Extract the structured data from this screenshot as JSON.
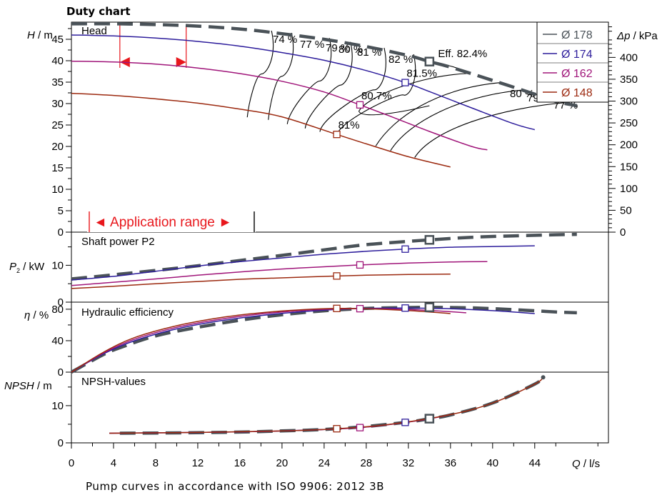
{
  "chart_data": {
    "type": "line",
    "title": "Duty chart",
    "footer": "Pump curves in accordance with ISO 9906: 2012 3B",
    "colors": {
      "d178": "#4a5258",
      "d174": "#2e1e9c",
      "d162": "#a0167a",
      "d148": "#9c2a10",
      "iso": "#000000",
      "app": "#e8171c"
    },
    "legend": [
      {
        "label": "Ø 178",
        "color": "#4a5258"
      },
      {
        "label": "Ø 174",
        "color": "#2e1e9c"
      },
      {
        "label": "Ø 162",
        "color": "#a0167a"
      },
      {
        "label": "Ø 148",
        "color": "#9c2a10"
      }
    ],
    "x_axis": {
      "label_var": "Q",
      "label_unit": " / l/s",
      "range": [
        0,
        51
      ],
      "ticks": [
        "0",
        "4",
        "8",
        "12",
        "16",
        "20",
        "24",
        "28",
        "32",
        "36",
        "40",
        "44"
      ]
    },
    "application_range": {
      "label": "◄ Application range ►",
      "range": [
        4.6,
        10.9
      ]
    },
    "panels": {
      "head": {
        "title": "Head",
        "y_label_var": "H",
        "y_label_unit": " / m",
        "ylim": [
          0,
          49
        ],
        "yticks": [
          "0",
          "5",
          "10",
          "15",
          "20",
          "25",
          "30",
          "35",
          "40",
          "45"
        ],
        "right_axis": {
          "label_var": "Δp",
          "label_unit": " / kPa",
          "ticks": [
            "0",
            "50",
            "100",
            "150",
            "200",
            "250",
            "300",
            "350",
            "400"
          ]
        },
        "series": [
          {
            "name": "Ø 178",
            "points": [
              [
                0,
                48.6
              ],
              [
                4.6,
                48.6
              ],
              [
                10.9,
                48.2
              ],
              [
                16,
                47.4
              ],
              [
                20,
                46.3
              ],
              [
                24,
                45.0
              ],
              [
                28,
                43.3
              ],
              [
                32,
                41.2
              ],
              [
                34,
                39.8
              ],
              [
                36,
                38.5
              ],
              [
                40,
                35.4
              ],
              [
                44,
                32.2
              ],
              [
                46,
                30.5
              ],
              [
                48,
                29.5
              ]
            ]
          },
          {
            "name": "Ø 174",
            "points": [
              [
                0,
                46.0
              ],
              [
                4,
                45.8
              ],
              [
                8,
                45.3
              ],
              [
                12,
                44.5
              ],
              [
                16,
                43.4
              ],
              [
                20,
                41.9
              ],
              [
                24,
                40.1
              ],
              [
                28,
                37.7
              ],
              [
                31.7,
                34.9
              ],
              [
                34,
                32.8
              ],
              [
                38,
                29.0
              ],
              [
                42,
                25.3
              ],
              [
                44,
                23.9
              ]
            ]
          },
          {
            "name": "Ø 162",
            "points": [
              [
                0,
                39.9
              ],
              [
                4,
                39.7
              ],
              [
                8,
                39.2
              ],
              [
                12,
                38.3
              ],
              [
                16,
                37.0
              ],
              [
                20,
                35.2
              ],
              [
                24,
                32.7
              ],
              [
                27.4,
                29.7
              ],
              [
                30,
                27.3
              ],
              [
                34,
                23.5
              ],
              [
                38,
                20.0
              ],
              [
                39.5,
                19.2
              ]
            ]
          },
          {
            "name": "Ø 148",
            "points": [
              [
                0,
                32.4
              ],
              [
                4,
                31.9
              ],
              [
                8,
                31.1
              ],
              [
                12,
                30.1
              ],
              [
                16,
                28.7
              ],
              [
                20,
                26.9
              ],
              [
                25.2,
                22.8
              ],
              [
                28,
                20.6
              ],
              [
                32,
                17.6
              ],
              [
                36,
                15.2
              ]
            ]
          }
        ],
        "bep_labels": [
          {
            "text": "Eff. 82.4%",
            "q": 34,
            "h": 39.8,
            "color": "#4a5258"
          },
          {
            "text": "81.5%",
            "q": 31.7,
            "h": 34.9,
            "color": "#2e1e9c"
          },
          {
            "text": "80.7%",
            "q": 27.4,
            "h": 29.7,
            "color": "#a0167a"
          },
          {
            "text": "81%",
            "q": 25.2,
            "h": 22.8,
            "color": "#9c2a10"
          }
        ],
        "iso_labels": [
          "74 %",
          "77 %",
          "79 %",
          "80 %",
          "81 %",
          "82 %",
          "80 %",
          "79 %",
          "77 %"
        ]
      },
      "power": {
        "title": "Shaft power P2",
        "y_label_var": "P",
        "y_label_sub": "2",
        "y_label_unit": " / kW",
        "ylim": [
          0,
          19
        ],
        "yticks": [
          "0",
          "10"
        ],
        "series": [
          {
            "name": "Ø 178",
            "points": [
              [
                0,
                6.3
              ],
              [
                4.6,
                7.6
              ],
              [
                10.9,
                9.5
              ],
              [
                16,
                11.3
              ],
              [
                20,
                12.7
              ],
              [
                24,
                14.2
              ],
              [
                28,
                15.6
              ],
              [
                32,
                16.5
              ],
              [
                34,
                16.9
              ],
              [
                38,
                17.6
              ],
              [
                42,
                18.0
              ],
              [
                46,
                18.3
              ],
              [
                48,
                18.4
              ]
            ]
          },
          {
            "name": "Ø 174",
            "points": [
              [
                0,
                6.0
              ],
              [
                4,
                7.0
              ],
              [
                8,
                8.4
              ],
              [
                12,
                9.8
              ],
              [
                16,
                11.0
              ],
              [
                20,
                12.0
              ],
              [
                24,
                13.0
              ],
              [
                28,
                13.8
              ],
              [
                31.7,
                14.4
              ],
              [
                36,
                14.9
              ],
              [
                40,
                15.1
              ],
              [
                44,
                15.3
              ]
            ]
          },
          {
            "name": "Ø 162",
            "points": [
              [
                0,
                4.5
              ],
              [
                4,
                5.4
              ],
              [
                8,
                6.3
              ],
              [
                12,
                7.3
              ],
              [
                16,
                8.2
              ],
              [
                20,
                9.0
              ],
              [
                23.3,
                9.5
              ],
              [
                27.4,
                10.1
              ],
              [
                32,
                10.6
              ],
              [
                36,
                10.9
              ],
              [
                39.5,
                11.0
              ]
            ]
          },
          {
            "name": "Ø 148",
            "points": [
              [
                0,
                3.7
              ],
              [
                4,
                4.3
              ],
              [
                8,
                5.0
              ],
              [
                12,
                5.6
              ],
              [
                16,
                6.2
              ],
              [
                20,
                6.6
              ],
              [
                25.2,
                7.1
              ],
              [
                28,
                7.3
              ],
              [
                32,
                7.5
              ],
              [
                36,
                7.6
              ]
            ]
          }
        ]
      },
      "efficiency": {
        "title": "Hydraulic efficiency",
        "y_label_var": "η",
        "y_label_unit": " / %",
        "ylim": [
          0,
          89
        ],
        "yticks": [
          "0",
          "40",
          "80"
        ],
        "series": [
          {
            "name": "Ø 178",
            "points": [
              [
                0,
                0
              ],
              [
                3,
                22
              ],
              [
                4.6,
                31
              ],
              [
                8,
                46
              ],
              [
                12,
                57
              ],
              [
                16,
                66
              ],
              [
                20,
                73
              ],
              [
                24,
                78
              ],
              [
                28,
                81
              ],
              [
                32,
                82.2
              ],
              [
                34,
                82.4
              ],
              [
                38,
                81.7
              ],
              [
                42,
                79.5
              ],
              [
                46,
                76.5
              ],
              [
                48,
                75.5
              ]
            ]
          },
          {
            "name": "Ø 174",
            "points": [
              [
                0,
                0
              ],
              [
                3,
                23
              ],
              [
                6,
                40
              ],
              [
                10,
                55
              ],
              [
                14,
                65
              ],
              [
                18,
                72
              ],
              [
                22,
                77
              ],
              [
                26,
                80.3
              ],
              [
                28,
                81.1
              ],
              [
                31.7,
                81.5
              ],
              [
                36,
                80.6
              ],
              [
                40,
                78.2
              ],
              [
                44,
                74.5
              ]
            ]
          },
          {
            "name": "Ø 162",
            "points": [
              [
                0,
                0
              ],
              [
                3,
                24
              ],
              [
                6,
                42
              ],
              [
                10,
                57
              ],
              [
                14,
                67
              ],
              [
                18,
                74
              ],
              [
                22,
                78.5
              ],
              [
                25,
                80.2
              ],
              [
                27.4,
                80.7
              ],
              [
                30,
                80.4
              ],
              [
                34,
                78.5
              ],
              [
                37.5,
                75.5
              ]
            ]
          },
          {
            "name": "Ø 148",
            "points": [
              [
                0,
                0
              ],
              [
                3,
                25
              ],
              [
                6,
                44
              ],
              [
                10,
                59
              ],
              [
                14,
                69
              ],
              [
                18,
                75.5
              ],
              [
                22,
                79.5
              ],
              [
                25.2,
                81
              ],
              [
                28,
                80.6
              ],
              [
                32,
                78.3
              ],
              [
                36,
                74.5
              ]
            ]
          }
        ]
      },
      "npsh": {
        "title": "NPSH-values",
        "y_label_var": "NPSH",
        "y_label_unit": " / m",
        "ylim": [
          0,
          19
        ],
        "yticks": [
          "0",
          "10"
        ],
        "series": [
          {
            "name": "Ø 178",
            "points": [
              [
                4.6,
                2.6
              ],
              [
                10.9,
                2.7
              ],
              [
                16,
                2.9
              ],
              [
                20,
                3.2
              ],
              [
                24,
                3.6
              ],
              [
                28,
                4.4
              ],
              [
                32,
                5.6
              ],
              [
                34,
                6.5
              ],
              [
                36,
                7.5
              ],
              [
                40,
                10.7
              ],
              [
                44,
                15.8
              ],
              [
                44.8,
                17.6
              ]
            ]
          },
          {
            "name": "Ø 174",
            "points": [
              [
                3.6,
                2.6
              ],
              [
                12,
                2.8
              ],
              [
                20,
                3.2
              ],
              [
                27.4,
                4.1
              ],
              [
                31.7,
                5.5
              ]
            ]
          },
          {
            "name": "Ø 162",
            "points": [
              [
                3.6,
                2.6
              ],
              [
                12,
                2.8
              ],
              [
                20,
                3.2
              ],
              [
                27.4,
                4.1
              ],
              [
                33,
                6.0
              ],
              [
                36,
                7.6
              ]
            ]
          },
          {
            "name": "Ø 148",
            "points": [
              [
                3.6,
                2.6
              ],
              [
                12,
                2.8
              ],
              [
                20,
                3.2
              ],
              [
                25.2,
                3.8
              ],
              [
                30,
                4.9
              ],
              [
                36,
                7.6
              ],
              [
                40,
                10.7
              ],
              [
                44,
                15.8
              ],
              [
                44.8,
                17.6
              ]
            ]
          }
        ],
        "markers": [
          {
            "name": "Ø 178",
            "q": 34,
            "v": 6.5
          },
          {
            "name": "Ø 174",
            "q": 31.7,
            "v": 5.5
          },
          {
            "name": "Ø 162",
            "q": 27.4,
            "v": 4.1
          },
          {
            "name": "Ø 148",
            "q": 25.2,
            "v": 3.8
          }
        ]
      }
    }
  }
}
